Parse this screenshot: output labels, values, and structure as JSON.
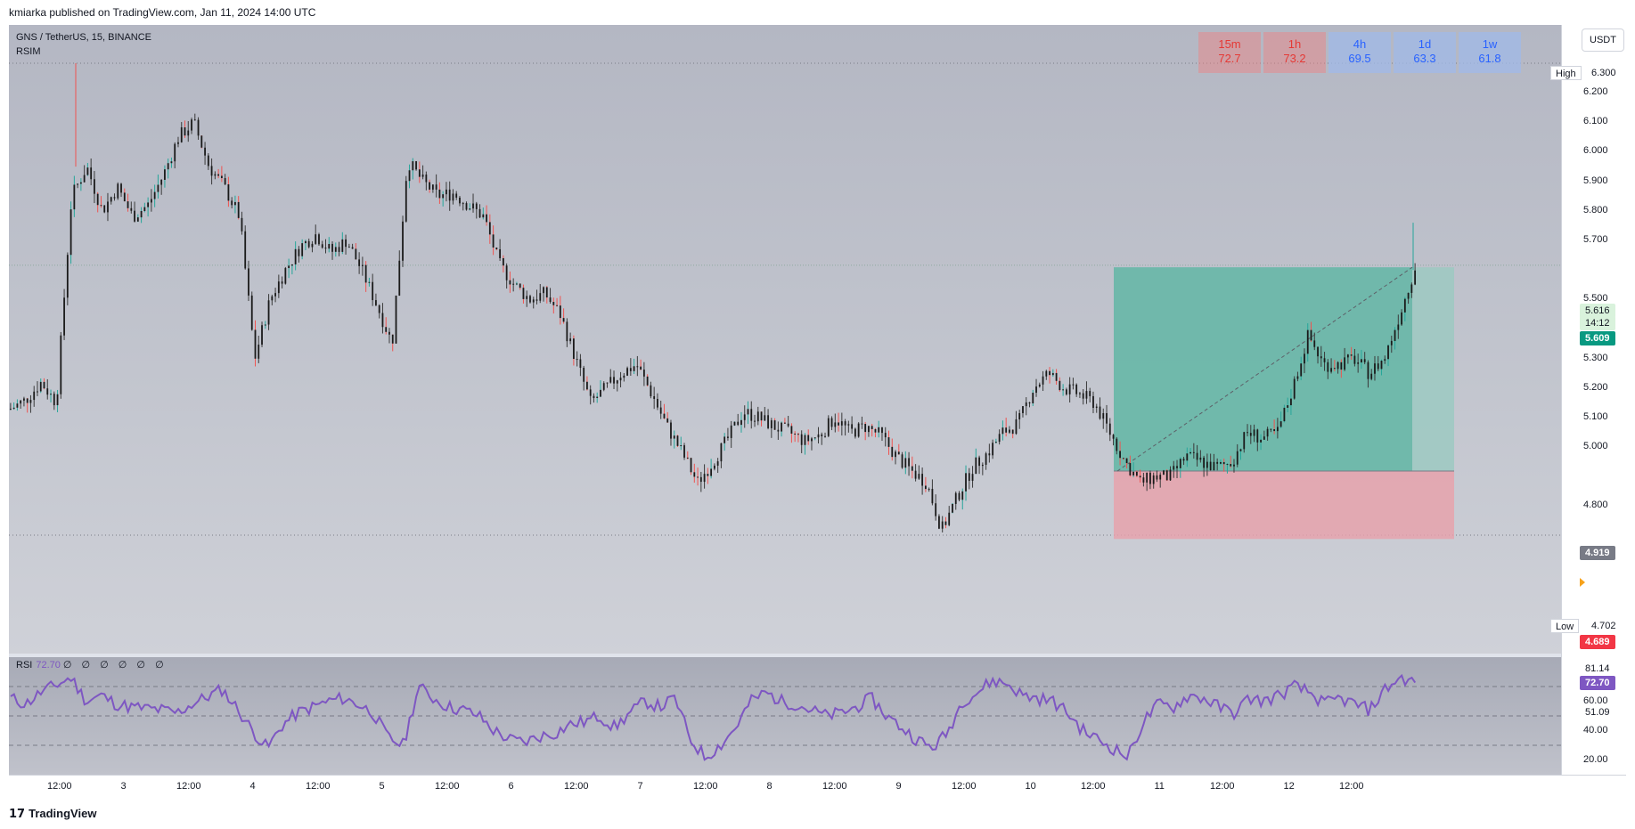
{
  "header": {
    "published_text": "kmiarka published on TradingView.com, Jan 11, 2024 14:00 UTC"
  },
  "legend": {
    "symbol": "GNS / TetherUS, 15, BINANCE",
    "indicator": "RSIM"
  },
  "mtf_table": [
    {
      "tf": "15m",
      "value": "72.7",
      "tone": "red"
    },
    {
      "tf": "1h",
      "value": "73.2",
      "tone": "red"
    },
    {
      "tf": "4h",
      "value": "69.5",
      "tone": "blue"
    },
    {
      "tf": "1d",
      "value": "63.3",
      "tone": "blue"
    },
    {
      "tf": "1w",
      "value": "61.8",
      "tone": "blue"
    }
  ],
  "currency_button": "USDT",
  "price_axis": {
    "ticks": [
      "6.200",
      "6.100",
      "6.000",
      "5.900",
      "5.800",
      "5.700",
      "5.500",
      "5.400",
      "5.300",
      "5.200",
      "5.100",
      "5.000",
      "4.800"
    ],
    "high": {
      "label": "High",
      "value": "6.300"
    },
    "low": {
      "label": "Low",
      "value": "4.702"
    },
    "current_price": "5.616",
    "countdown": "14:12",
    "position_target": "5.609",
    "position_entry": "4.919",
    "position_stop": "4.689"
  },
  "rsi": {
    "label": "RSI",
    "value": "72.70",
    "placeholder_values": "∅ ∅ ∅ ∅ ∅ ∅",
    "axis_ticks": [
      "60.00",
      "40.00",
      "20.00"
    ],
    "value_tags": {
      "high": "81.14",
      "current": "72.70",
      "mid": "51.09"
    }
  },
  "time_axis": {
    "labels": [
      "12:00",
      "3",
      "12:00",
      "4",
      "12:00",
      "5",
      "12:00",
      "6",
      "12:00",
      "7",
      "12:00",
      "8",
      "12:00",
      "9",
      "12:00",
      "10",
      "12:00",
      "11",
      "12:00",
      "12",
      "12:00"
    ]
  },
  "footer": {
    "brand": "TradingView",
    "logo_glyph": "17"
  },
  "colors": {
    "up": "#26a69a",
    "down": "#ef5350",
    "rsi": "#7e57c2",
    "target_zone": "#5fb3a3",
    "stop_zone": "#e8a0aa"
  },
  "chart_data": [
    {
      "type": "candlestick",
      "title": "GNS / TetherUS, 15, BINANCE",
      "x_labels": [
        "12:00",
        "3",
        "12:00",
        "4",
        "12:00",
        "5",
        "12:00",
        "6",
        "12:00",
        "7",
        "12:00",
        "8",
        "12:00",
        "9",
        "12:00",
        "10",
        "12:00",
        "11",
        "12:00",
        "12",
        "12:00"
      ],
      "ylim": [
        4.65,
        6.35
      ],
      "close_path": [
        5.13,
        5.16,
        5.22,
        5.15,
        5.85,
        5.95,
        5.8,
        5.88,
        5.78,
        5.82,
        5.92,
        6.05,
        6.1,
        5.95,
        5.88,
        5.78,
        5.3,
        5.5,
        5.6,
        5.68,
        5.72,
        5.66,
        5.7,
        5.6,
        5.48,
        5.35,
        5.97,
        5.9,
        5.85,
        5.86,
        5.82,
        5.78,
        5.62,
        5.55,
        5.5,
        5.52,
        5.45,
        5.3,
        5.15,
        5.2,
        5.25,
        5.28,
        5.18,
        5.07,
        4.98,
        4.88,
        4.95,
        5.03,
        5.12,
        5.1,
        5.07,
        5.05,
        5.02,
        5.04,
        5.1,
        5.05,
        5.07,
        5.04,
        4.97,
        4.92,
        4.88,
        4.72,
        4.83,
        4.93,
        4.98,
        5.05,
        5.08,
        5.2,
        5.25,
        5.2,
        5.18,
        5.15,
        5.05,
        4.95,
        4.88,
        4.9,
        4.9,
        4.97,
        4.95,
        4.93,
        4.95,
        5.05,
        5.03,
        5.05,
        5.2,
        5.38,
        5.28,
        5.28,
        5.3,
        5.25,
        5.3,
        5.45,
        5.61
      ],
      "high": 6.3,
      "low": 4.702,
      "last": 5.616,
      "long_position": {
        "entry": 4.919,
        "target": 5.609,
        "stop": 4.689
      }
    },
    {
      "type": "line",
      "title": "RSI",
      "ylim": [
        10,
        90
      ],
      "levels": [
        70,
        50,
        30
      ],
      "series": [
        {
          "name": "RSI",
          "values": [
            62,
            58,
            66,
            71,
            76,
            60,
            64,
            58,
            56,
            55,
            54,
            52,
            58,
            63,
            68,
            55,
            40,
            28,
            44,
            52,
            56,
            60,
            62,
            58,
            52,
            35,
            30,
            70,
            62,
            56,
            54,
            50,
            40,
            34,
            32,
            36,
            38,
            44,
            46,
            50,
            42,
            52,
            60,
            56,
            62,
            34,
            22,
            30,
            42,
            60,
            66,
            60,
            58,
            54,
            50,
            52,
            56,
            62,
            50,
            42,
            34,
            28,
            38,
            60,
            66,
            74,
            72,
            64,
            62,
            60,
            52,
            40,
            34,
            28,
            22,
            46,
            58,
            56,
            64,
            62,
            56,
            52,
            62,
            60,
            64,
            70,
            66,
            58,
            62,
            58,
            54,
            68,
            76,
            72.7
          ]
        }
      ]
    }
  ]
}
